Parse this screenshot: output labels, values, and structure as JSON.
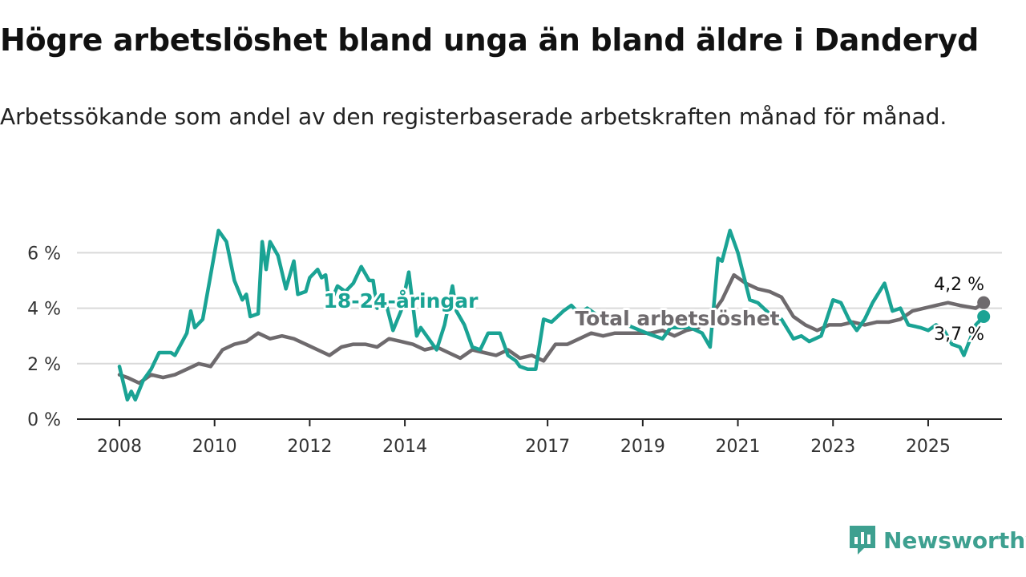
{
  "header": {
    "title": "Högre arbetslöshet bland unga än bland äldre i Danderyd",
    "subtitle": "Arbetssökande som andel av den registerbaserade arbetskraften månad för månad."
  },
  "brand": {
    "name": "Newsworthy",
    "color": "#3ea090"
  },
  "chart_data": {
    "type": "line",
    "title": "Högre arbetslöshet bland unga än bland äldre i Danderyd",
    "subtitle": "Arbetssökande som andel av den registerbaserade arbetskraften månad för månad.",
    "xlabel": "",
    "ylabel": "",
    "x_ticks": [
      "2008",
      "2010",
      "2012",
      "2014",
      "2017",
      "2019",
      "2021",
      "2023",
      "2025"
    ],
    "y_ticks": [
      "0 %",
      "2 %",
      "4 %",
      "6 %"
    ],
    "ylim": [
      0,
      7
    ],
    "xlim": [
      "2007-11",
      "2026-05"
    ],
    "grid": true,
    "series": [
      {
        "name": "18-24-åringar",
        "color": "#1aa394",
        "end_label": "3,7 %",
        "points": [
          [
            "2008-01",
            1.9
          ],
          [
            "2008-03",
            0.7
          ],
          [
            "2008-04",
            1.0
          ],
          [
            "2008-05",
            0.7
          ],
          [
            "2008-07",
            1.4
          ],
          [
            "2008-09",
            1.8
          ],
          [
            "2008-11",
            2.4
          ],
          [
            "2009-02",
            2.4
          ],
          [
            "2009-03",
            2.3
          ],
          [
            "2009-06",
            3.1
          ],
          [
            "2009-07",
            3.9
          ],
          [
            "2009-08",
            3.3
          ],
          [
            "2009-10",
            3.6
          ],
          [
            "2009-12",
            5.2
          ],
          [
            "2010-02",
            6.8
          ],
          [
            "2010-04",
            6.4
          ],
          [
            "2010-06",
            5.0
          ],
          [
            "2010-08",
            4.3
          ],
          [
            "2010-09",
            4.5
          ],
          [
            "2010-10",
            3.7
          ],
          [
            "2010-12",
            3.8
          ],
          [
            "2011-01",
            6.4
          ],
          [
            "2011-02",
            5.4
          ],
          [
            "2011-03",
            6.4
          ],
          [
            "2011-05",
            5.9
          ],
          [
            "2011-07",
            4.7
          ],
          [
            "2011-09",
            5.7
          ],
          [
            "2011-10",
            4.5
          ],
          [
            "2011-12",
            4.6
          ],
          [
            "2012-01",
            5.1
          ],
          [
            "2012-03",
            5.4
          ],
          [
            "2012-04",
            5.1
          ],
          [
            "2012-05",
            5.2
          ],
          [
            "2012-06",
            4.1
          ],
          [
            "2012-08",
            4.8
          ],
          [
            "2012-10",
            4.6
          ],
          [
            "2012-12",
            4.9
          ],
          [
            "2013-02",
            5.5
          ],
          [
            "2013-04",
            5.0
          ],
          [
            "2013-05",
            5.0
          ],
          [
            "2013-06",
            4.0
          ],
          [
            "2013-08",
            4.3
          ],
          [
            "2013-10",
            3.2
          ],
          [
            "2013-12",
            3.9
          ],
          [
            "2014-02",
            5.3
          ],
          [
            "2014-04",
            3.0
          ],
          [
            "2014-05",
            3.3
          ],
          [
            "2014-07",
            2.9
          ],
          [
            "2014-09",
            2.5
          ],
          [
            "2014-11",
            3.4
          ],
          [
            "2015-01",
            4.8
          ],
          [
            "2015-02",
            3.9
          ],
          [
            "2015-04",
            3.4
          ],
          [
            "2015-06",
            2.6
          ],
          [
            "2015-08",
            2.5
          ],
          [
            "2015-10",
            3.1
          ],
          [
            "2016-01",
            3.1
          ],
          [
            "2016-03",
            2.3
          ],
          [
            "2016-05",
            2.1
          ],
          [
            "2016-06",
            1.9
          ],
          [
            "2016-08",
            1.8
          ],
          [
            "2016-10",
            1.8
          ],
          [
            "2016-12",
            3.6
          ],
          [
            "2017-02",
            3.5
          ],
          [
            "2017-05",
            3.9
          ],
          [
            "2017-07",
            4.1
          ],
          [
            "2017-09",
            3.8
          ],
          [
            "2017-11",
            4.0
          ],
          [
            "2018-02",
            3.7
          ],
          [
            "2018-05",
            3.5
          ],
          [
            "2018-09",
            3.4
          ],
          [
            "2019-02",
            3.1
          ],
          [
            "2019-04",
            3.0
          ],
          [
            "2019-06",
            2.9
          ],
          [
            "2019-08",
            3.3
          ],
          [
            "2019-10",
            3.3
          ],
          [
            "2020-01",
            3.3
          ],
          [
            "2020-04",
            3.1
          ],
          [
            "2020-06",
            2.6
          ],
          [
            "2020-08",
            5.8
          ],
          [
            "2020-09",
            5.7
          ],
          [
            "2020-11",
            6.8
          ],
          [
            "2021-01",
            6.0
          ],
          [
            "2021-04",
            4.3
          ],
          [
            "2021-06",
            4.2
          ],
          [
            "2021-09",
            3.8
          ],
          [
            "2021-12",
            3.6
          ],
          [
            "2022-03",
            2.9
          ],
          [
            "2022-05",
            3.0
          ],
          [
            "2022-07",
            2.8
          ],
          [
            "2022-10",
            3.0
          ],
          [
            "2023-01",
            4.3
          ],
          [
            "2023-03",
            4.2
          ],
          [
            "2023-05",
            3.6
          ],
          [
            "2023-07",
            3.2
          ],
          [
            "2023-09",
            3.6
          ],
          [
            "2023-11",
            4.2
          ],
          [
            "2024-02",
            4.9
          ],
          [
            "2024-04",
            3.9
          ],
          [
            "2024-06",
            4.0
          ],
          [
            "2024-08",
            3.4
          ],
          [
            "2024-11",
            3.3
          ],
          [
            "2025-01",
            3.2
          ],
          [
            "2025-03",
            3.4
          ],
          [
            "2025-05",
            3.2
          ],
          [
            "2025-07",
            2.7
          ],
          [
            "2025-09",
            2.6
          ],
          [
            "2025-10",
            2.3
          ],
          [
            "2026-01",
            3.4
          ],
          [
            "2026-03",
            3.7
          ]
        ]
      },
      {
        "name": "Total arbetslöshet",
        "color": "#6e6a6d",
        "end_label": "4,2 %",
        "points": [
          [
            "2008-01",
            1.6
          ],
          [
            "2008-03",
            1.5
          ],
          [
            "2008-06",
            1.3
          ],
          [
            "2008-09",
            1.6
          ],
          [
            "2008-12",
            1.5
          ],
          [
            "2009-03",
            1.6
          ],
          [
            "2009-06",
            1.8
          ],
          [
            "2009-09",
            2.0
          ],
          [
            "2009-12",
            1.9
          ],
          [
            "2010-03",
            2.5
          ],
          [
            "2010-06",
            2.7
          ],
          [
            "2010-09",
            2.8
          ],
          [
            "2010-12",
            3.1
          ],
          [
            "2011-03",
            2.9
          ],
          [
            "2011-06",
            3.0
          ],
          [
            "2011-09",
            2.9
          ],
          [
            "2011-12",
            2.7
          ],
          [
            "2012-03",
            2.5
          ],
          [
            "2012-06",
            2.3
          ],
          [
            "2012-09",
            2.6
          ],
          [
            "2012-12",
            2.7
          ],
          [
            "2013-03",
            2.7
          ],
          [
            "2013-06",
            2.6
          ],
          [
            "2013-09",
            2.9
          ],
          [
            "2013-12",
            2.8
          ],
          [
            "2014-03",
            2.7
          ],
          [
            "2014-06",
            2.5
          ],
          [
            "2014-09",
            2.6
          ],
          [
            "2014-12",
            2.4
          ],
          [
            "2015-03",
            2.2
          ],
          [
            "2015-06",
            2.5
          ],
          [
            "2015-09",
            2.4
          ],
          [
            "2015-12",
            2.3
          ],
          [
            "2016-03",
            2.5
          ],
          [
            "2016-06",
            2.2
          ],
          [
            "2016-09",
            2.3
          ],
          [
            "2016-12",
            2.1
          ],
          [
            "2017-03",
            2.7
          ],
          [
            "2017-06",
            2.7
          ],
          [
            "2017-09",
            2.9
          ],
          [
            "2017-12",
            3.1
          ],
          [
            "2018-03",
            3.0
          ],
          [
            "2018-06",
            3.1
          ],
          [
            "2018-09",
            3.1
          ],
          [
            "2018-12",
            3.1
          ],
          [
            "2019-03",
            3.1
          ],
          [
            "2019-06",
            3.2
          ],
          [
            "2019-09",
            3.0
          ],
          [
            "2019-12",
            3.2
          ],
          [
            "2020-03",
            3.3
          ],
          [
            "2020-06",
            3.7
          ],
          [
            "2020-09",
            4.3
          ],
          [
            "2020-12",
            5.2
          ],
          [
            "2021-03",
            4.9
          ],
          [
            "2021-06",
            4.7
          ],
          [
            "2021-09",
            4.6
          ],
          [
            "2021-12",
            4.4
          ],
          [
            "2022-03",
            3.7
          ],
          [
            "2022-06",
            3.4
          ],
          [
            "2022-09",
            3.2
          ],
          [
            "2022-12",
            3.4
          ],
          [
            "2023-03",
            3.4
          ],
          [
            "2023-06",
            3.5
          ],
          [
            "2023-09",
            3.4
          ],
          [
            "2023-12",
            3.5
          ],
          [
            "2024-03",
            3.5
          ],
          [
            "2024-06",
            3.6
          ],
          [
            "2024-09",
            3.9
          ],
          [
            "2024-12",
            4.0
          ],
          [
            "2025-03",
            4.1
          ],
          [
            "2025-06",
            4.2
          ],
          [
            "2025-09",
            4.1
          ],
          [
            "2026-01",
            4.0
          ],
          [
            "2026-03",
            4.2
          ]
        ]
      }
    ]
  }
}
